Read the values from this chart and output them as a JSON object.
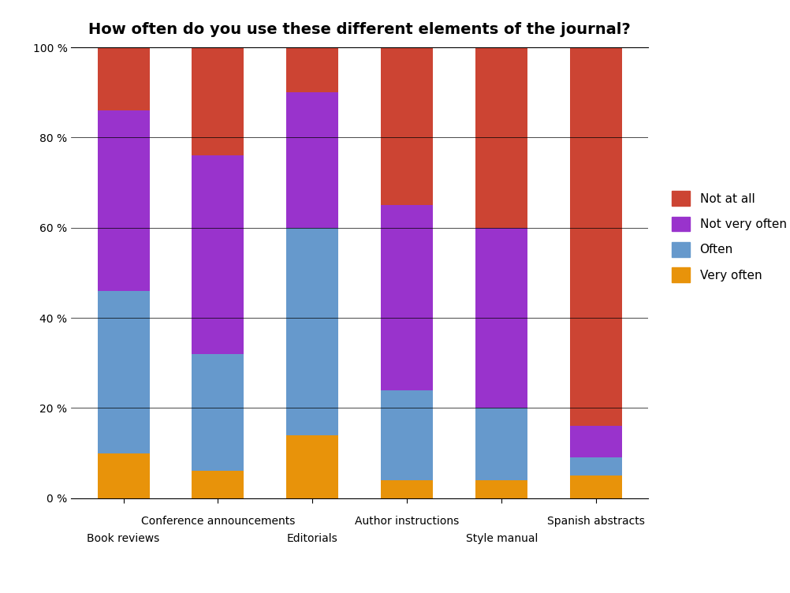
{
  "title": "How often do you use these different elements of the journal?",
  "categories": [
    "Book reviews",
    "Conference announcements",
    "Editorials",
    "Author instructions",
    "Style manual",
    "Spanish abstracts"
  ],
  "series": {
    "Very often": [
      10,
      6,
      14,
      4,
      4,
      5
    ],
    "Often": [
      36,
      26,
      46,
      20,
      16,
      4
    ],
    "Not very often": [
      40,
      44,
      30,
      41,
      40,
      7
    ],
    "Not at all": [
      14,
      24,
      10,
      35,
      40,
      84
    ]
  },
  "colors": {
    "Very often": "#E8930A",
    "Often": "#6699CC",
    "Not very often": "#9933CC",
    "Not at all": "#CC4433"
  },
  "order": [
    "Very often",
    "Often",
    "Not very often",
    "Not at all"
  ],
  "ylim": [
    0,
    100
  ],
  "yticks": [
    0,
    20,
    40,
    60,
    80,
    100
  ],
  "ytick_labels": [
    "0 %",
    "20 %",
    "40 %",
    "60 %",
    "80 %",
    "100 %"
  ],
  "title_fontsize": 14,
  "legend_fontsize": 11,
  "tick_fontsize": 10,
  "bar_width": 0.55,
  "background_color": "#ffffff"
}
